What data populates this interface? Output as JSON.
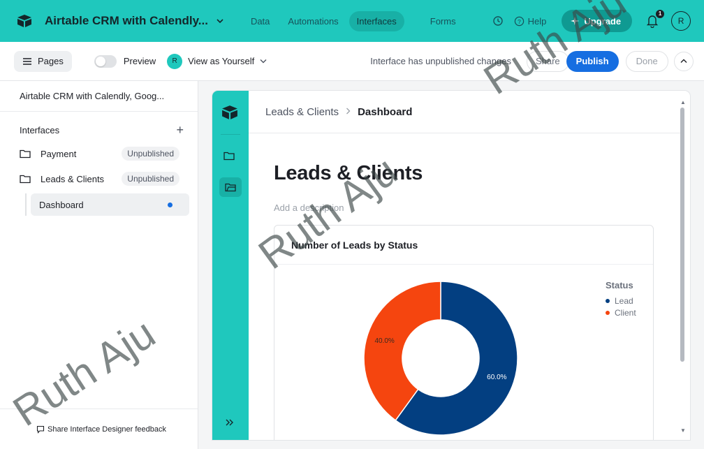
{
  "topbar": {
    "base_title": "Airtable CRM with Calendly...",
    "nav": [
      "Data",
      "Automations",
      "Interfaces",
      "Forms"
    ],
    "help_label": "Help",
    "upgrade_label": "Upgrade",
    "notification_count": "1",
    "user_initial": "R"
  },
  "toolbar": {
    "pages_label": "Pages",
    "preview_label": "Preview",
    "view_as_label": "View as Yourself",
    "view_as_initial": "R",
    "unpublished_message": "Interface has unpublished changes",
    "share_label": "Share",
    "publish_label": "Publish",
    "done_label": "Done"
  },
  "sidebar": {
    "base_name": "Airtable CRM with Calendly, Goog...",
    "section_label": "Interfaces",
    "items": [
      {
        "label": "Payment",
        "badge": "Unpublished"
      },
      {
        "label": "Leads & Clients",
        "badge": "Unpublished"
      }
    ],
    "active_page": "Dashboard",
    "footer_label": "Share Interface Designer feedback"
  },
  "canvas": {
    "breadcrumb_parent": "Leads & Clients",
    "breadcrumb_current": "Dashboard",
    "page_title": "Leads & Clients",
    "description_placeholder": "Add a description"
  },
  "chart_data": {
    "type": "pie",
    "variant": "donut",
    "title": "Number of Leads by Status",
    "legend_title": "Status",
    "categories": [
      "Lead",
      "Client"
    ],
    "values": [
      60.0,
      40.0
    ],
    "labels": [
      "60.0%",
      "40.0%"
    ],
    "colors": [
      "#033f81",
      "#f5450f"
    ]
  },
  "watermark": "Ruth Aju",
  "colors": {
    "brand_teal": "#1fc8bd",
    "publish_blue": "#166ee1"
  }
}
